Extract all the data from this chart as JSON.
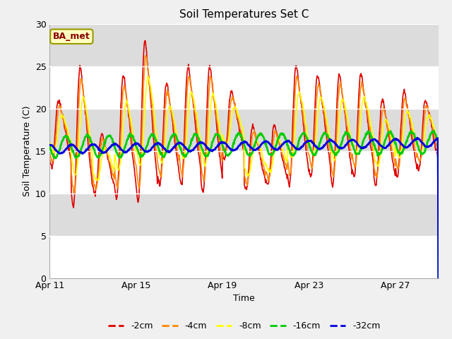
{
  "title": "Soil Temperatures Set C",
  "xlabel": "Time",
  "ylabel": "Soil Temperature (C)",
  "ylim": [
    0,
    30
  ],
  "yticks": [
    0,
    5,
    10,
    15,
    20,
    25,
    30
  ],
  "x_tick_days": [
    11,
    15,
    19,
    23,
    27
  ],
  "series_colors": {
    "-2cm": "#dd0000",
    "-4cm": "#ff8800",
    "-8cm": "#ffff00",
    "-16cm": "#00cc00",
    "-32cm": "#0000dd"
  },
  "band_color_dark": "#dcdcdc",
  "band_color_light": "#f0f0f0",
  "fig_bg": "#f0f0f0",
  "annotation_text": "BA_met",
  "annotation_bg": "#ffffc0",
  "annotation_border": "#999900",
  "annotation_text_color": "#880000"
}
